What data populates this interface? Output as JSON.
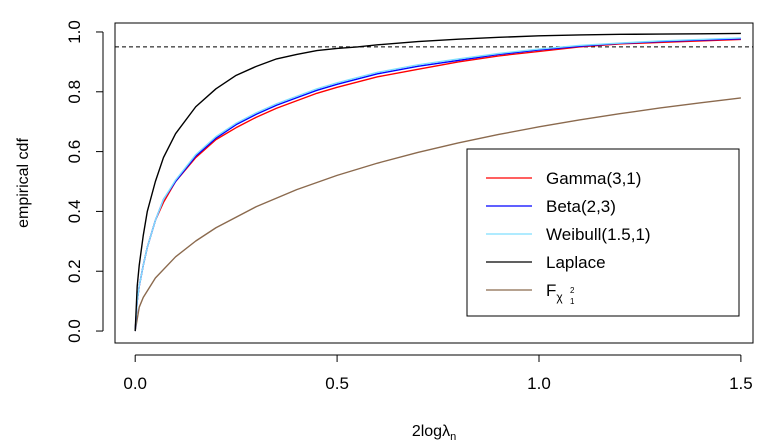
{
  "chart_data": {
    "type": "line",
    "xlabel_main": "2log",
    "xlabel_lambda": "λ",
    "xlabel_sub": "n",
    "ylabel": "empirical cdf",
    "xlim": [
      -0.05,
      1.53
    ],
    "ylim": [
      -0.04,
      1.03
    ],
    "xticks": [
      0.0,
      0.5,
      1.0,
      1.5
    ],
    "xtick_labels": [
      "0.0",
      "0.5",
      "1.0",
      "1.5"
    ],
    "yticks": [
      0.0,
      0.2,
      0.4,
      0.6,
      0.8,
      1.0
    ],
    "ytick_labels": [
      "0.0",
      "0.2",
      "0.4",
      "0.6",
      "0.8",
      "1.0"
    ],
    "reference_line": {
      "y": 0.95,
      "style": "dashed"
    },
    "legend_position": "center-right",
    "series": [
      {
        "name": "Gamma(3,1)",
        "color": "#ff0000",
        "x": [
          0,
          0.005,
          0.01,
          0.02,
          0.03,
          0.05,
          0.07,
          0.1,
          0.15,
          0.2,
          0.25,
          0.3,
          0.35,
          0.4,
          0.45,
          0.5,
          0.6,
          0.7,
          0.8,
          0.9,
          1.0,
          1.1,
          1.2,
          1.3,
          1.4,
          1.5
        ],
        "y": [
          0,
          0.1,
          0.15,
          0.22,
          0.28,
          0.37,
          0.43,
          0.5,
          0.58,
          0.64,
          0.68,
          0.715,
          0.745,
          0.77,
          0.795,
          0.815,
          0.85,
          0.875,
          0.9,
          0.92,
          0.935,
          0.95,
          0.96,
          0.965,
          0.97,
          0.975
        ]
      },
      {
        "name": "Beta(2,3)",
        "color": "#0000ff",
        "x": [
          0,
          0.005,
          0.01,
          0.02,
          0.03,
          0.05,
          0.07,
          0.1,
          0.15,
          0.2,
          0.25,
          0.3,
          0.35,
          0.4,
          0.45,
          0.5,
          0.6,
          0.7,
          0.8,
          0.9,
          1.0,
          1.1,
          1.2,
          1.3,
          1.4,
          1.5
        ],
        "y": [
          0,
          0.1,
          0.15,
          0.22,
          0.28,
          0.37,
          0.44,
          0.5,
          0.585,
          0.645,
          0.69,
          0.725,
          0.755,
          0.78,
          0.805,
          0.825,
          0.86,
          0.885,
          0.905,
          0.925,
          0.94,
          0.952,
          0.962,
          0.968,
          0.973,
          0.977
        ]
      },
      {
        "name": "Weibull(1.5,1)",
        "color": "#7fdfff",
        "x": [
          0,
          0.005,
          0.01,
          0.02,
          0.03,
          0.05,
          0.07,
          0.1,
          0.15,
          0.2,
          0.25,
          0.3,
          0.35,
          0.4,
          0.45,
          0.5,
          0.6,
          0.7,
          0.8,
          0.9,
          1.0,
          1.1,
          1.2,
          1.3,
          1.4,
          1.5
        ],
        "y": [
          0,
          0.1,
          0.15,
          0.22,
          0.28,
          0.37,
          0.44,
          0.505,
          0.59,
          0.65,
          0.695,
          0.73,
          0.76,
          0.785,
          0.81,
          0.83,
          0.865,
          0.89,
          0.91,
          0.928,
          0.943,
          0.955,
          0.963,
          0.97,
          0.975,
          0.98
        ]
      },
      {
        "name": "Laplace",
        "color": "#000000",
        "x": [
          0,
          0.005,
          0.01,
          0.02,
          0.03,
          0.05,
          0.07,
          0.1,
          0.15,
          0.2,
          0.25,
          0.3,
          0.35,
          0.4,
          0.45,
          0.5,
          0.55,
          0.6,
          0.7,
          0.8,
          0.9,
          1.0,
          1.1,
          1.2,
          1.3,
          1.4,
          1.5
        ],
        "y": [
          0,
          0.15,
          0.22,
          0.32,
          0.4,
          0.5,
          0.58,
          0.66,
          0.75,
          0.81,
          0.855,
          0.885,
          0.91,
          0.925,
          0.938,
          0.945,
          0.95,
          0.957,
          0.968,
          0.976,
          0.982,
          0.987,
          0.99,
          0.992,
          0.993,
          0.994,
          0.995
        ]
      },
      {
        "name": "F",
        "name_sub": "χ",
        "name_sub_sup": "2",
        "name_sub_sub": "1",
        "color": "#8b6a4e",
        "x": [
          0,
          0.01,
          0.02,
          0.05,
          0.1,
          0.15,
          0.2,
          0.3,
          0.4,
          0.5,
          0.6,
          0.7,
          0.8,
          0.9,
          1.0,
          1.1,
          1.2,
          1.3,
          1.4,
          1.5
        ],
        "y": [
          0,
          0.0797,
          0.1125,
          0.1772,
          0.2482,
          0.3011,
          0.3453,
          0.4161,
          0.4729,
          0.5205,
          0.5614,
          0.5972,
          0.6289,
          0.6572,
          0.6827,
          0.7057,
          0.7267,
          0.7458,
          0.7633,
          0.7793
        ]
      }
    ]
  }
}
